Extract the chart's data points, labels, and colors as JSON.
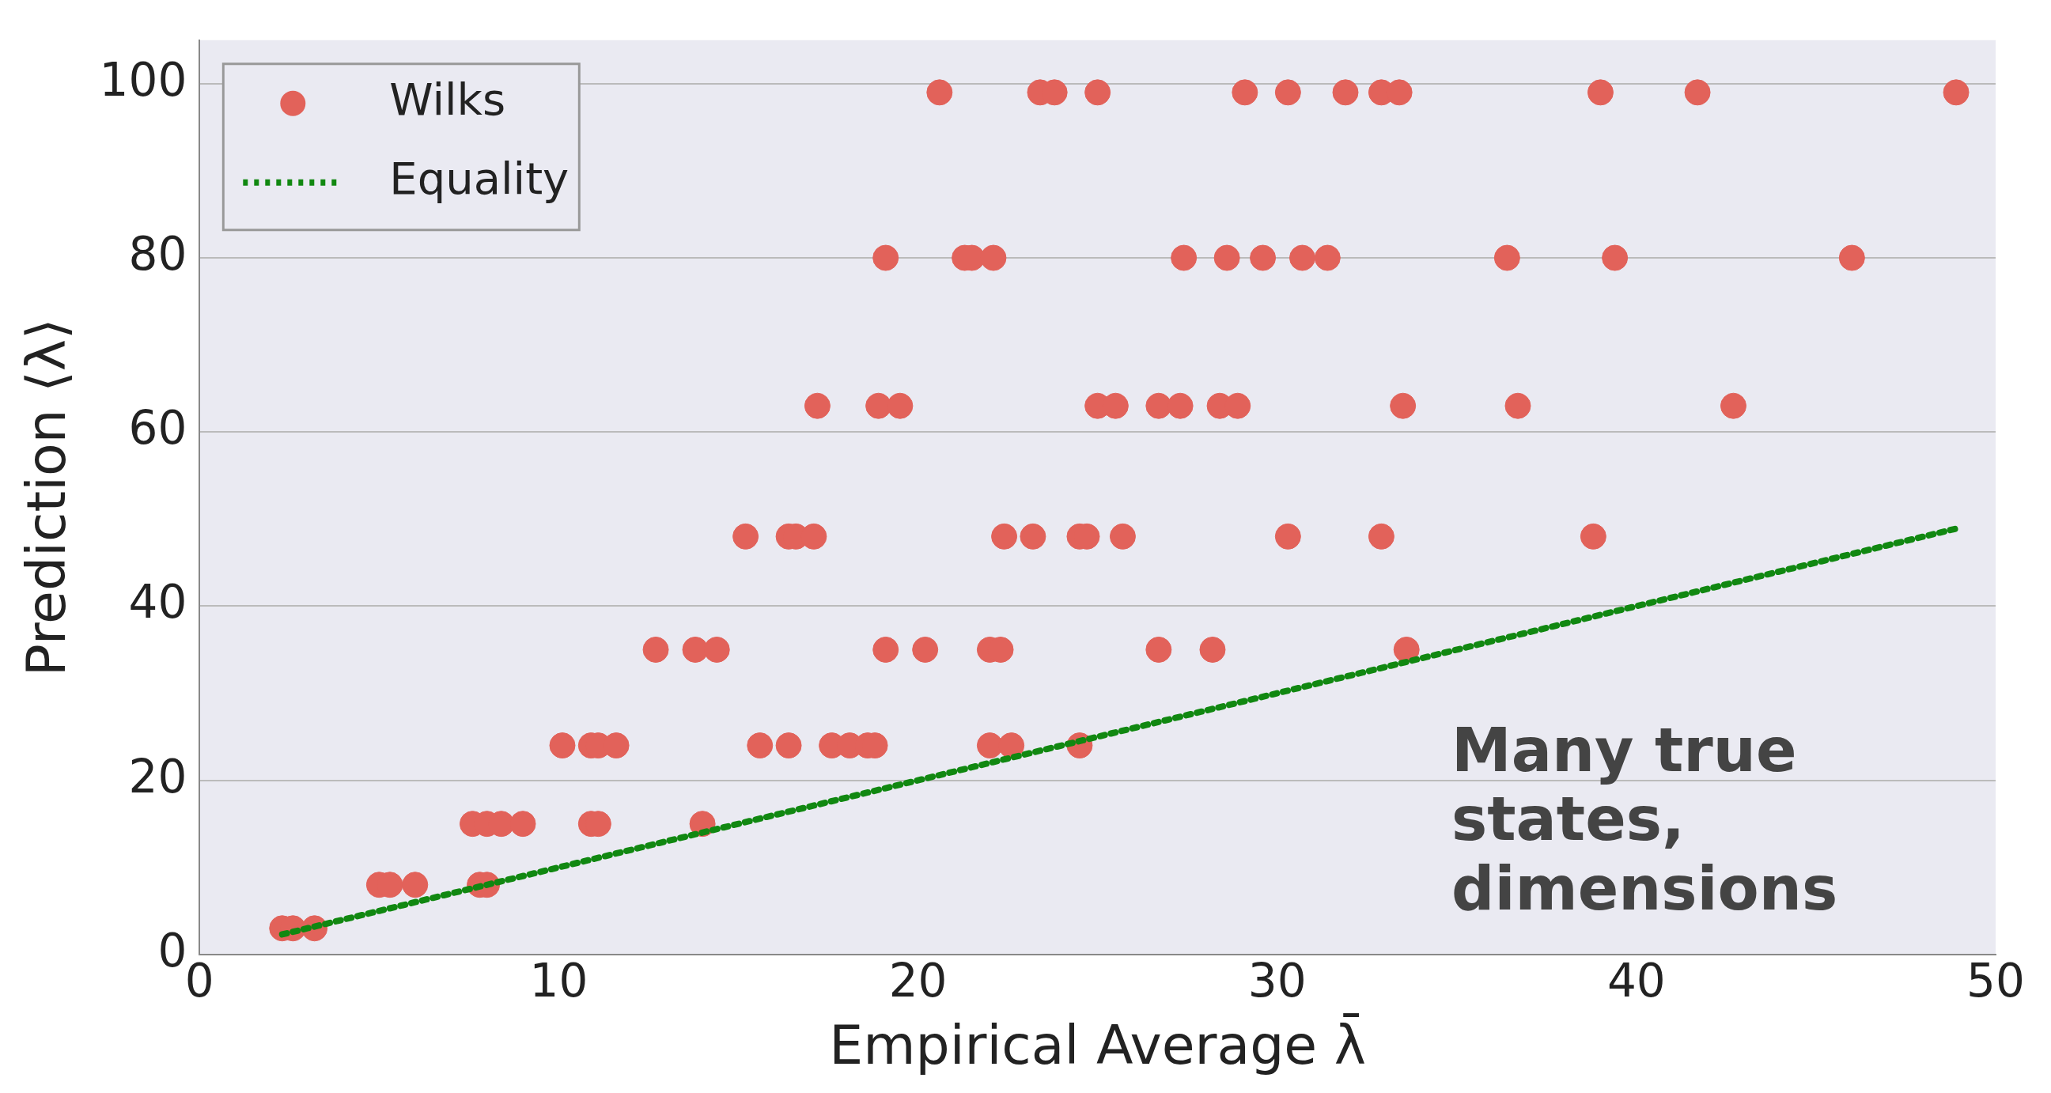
{
  "chart_data": {
    "type": "scatter",
    "xlabel": "Empirical Average λ̄",
    "ylabel": "Prediction ⟨λ⟩",
    "xlim": [
      0,
      50
    ],
    "xticks": [
      0,
      10,
      20,
      30,
      40,
      50
    ],
    "ylim": [
      0,
      105
    ],
    "yticks": [
      0,
      20,
      40,
      60,
      80,
      100
    ],
    "grid": "y",
    "legend": "top left",
    "marker": "circle",
    "annotations": [
      "Many true states, dimensions"
    ],
    "series": [
      {
        "name": "Wilks",
        "type": "scatter",
        "color": "#e2625a",
        "x": [
          20.6,
          23.4,
          23.8,
          25.0,
          29.1,
          30.3,
          31.9,
          32.9,
          33.4,
          39.0,
          41.7,
          48.9,
          19.1,
          21.3,
          21.5,
          22.1,
          27.4,
          28.6,
          29.6,
          30.7,
          31.4,
          36.4,
          39.4,
          46.0,
          17.2,
          18.9,
          19.5,
          25.0,
          25.5,
          26.7,
          27.3,
          28.4,
          28.9,
          33.5,
          36.7,
          42.7,
          15.2,
          16.4,
          16.6,
          17.1,
          22.4,
          23.2,
          24.5,
          24.7,
          25.7,
          30.3,
          32.9,
          38.8,
          12.7,
          13.8,
          14.4,
          19.1,
          20.2,
          22.0,
          22.3,
          26.7,
          28.2,
          33.6,
          10.1,
          10.9,
          11.1,
          11.6,
          15.6,
          16.4,
          17.6,
          18.1,
          18.6,
          18.8,
          22.0,
          22.6,
          24.5,
          7.6,
          8.0,
          8.4,
          9.0,
          10.9,
          11.1,
          14.0,
          5.0,
          5.3,
          6.0,
          7.8,
          8.0,
          2.3,
          2.6,
          3.2
        ],
        "values": [
          99,
          99,
          99,
          99,
          99,
          99,
          99,
          99,
          99,
          99,
          99,
          99,
          80,
          80,
          80,
          80,
          80,
          80,
          80,
          80,
          80,
          80,
          80,
          80,
          63,
          63,
          63,
          63,
          63,
          63,
          63,
          63,
          63,
          63,
          63,
          63,
          48,
          48,
          48,
          48,
          48,
          48,
          48,
          48,
          48,
          48,
          48,
          48,
          35,
          35,
          35,
          35,
          35,
          35,
          35,
          35,
          35,
          35,
          24,
          24,
          24,
          24,
          24,
          24,
          24,
          24,
          24,
          24,
          24,
          24,
          24,
          15,
          15,
          15,
          15,
          15,
          15,
          15,
          8,
          8,
          8,
          8,
          8,
          3,
          3,
          3
        ]
      },
      {
        "name": "Equality",
        "type": "line",
        "color": "#118811",
        "line_style": "dotted",
        "marker": "none",
        "x": [
          2.3,
          48.9
        ],
        "values": [
          2.3,
          48.9
        ]
      }
    ]
  }
}
